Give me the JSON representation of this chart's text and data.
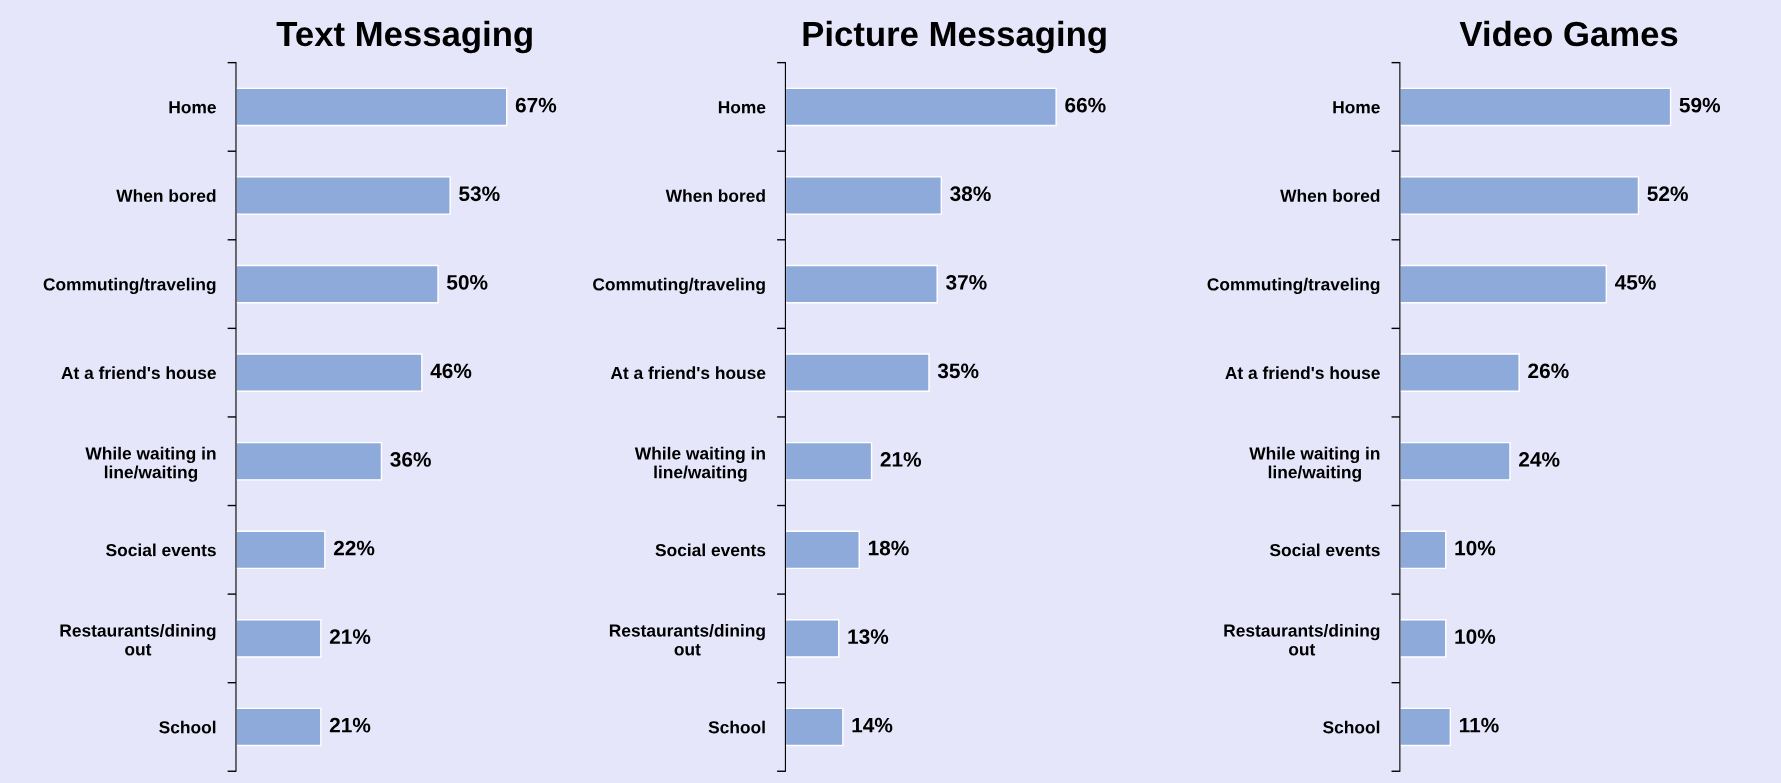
{
  "chart_data": [
    {
      "type": "bar",
      "orientation": "horizontal",
      "title": "Text Messaging",
      "categories": [
        "Home",
        "When bored",
        "Commuting/traveling",
        "At a friend's house",
        "While waiting in\nline/waiting",
        "Social events",
        "Restaurants/dining\nout",
        "School"
      ],
      "values": [
        67,
        53,
        50,
        46,
        36,
        22,
        21,
        21
      ],
      "value_labels": [
        "67%",
        "53%",
        "50%",
        "46%",
        "36%",
        "22%",
        "21%",
        "21%"
      ],
      "color": "#8eaadb",
      "grid": false,
      "legend": false
    },
    {
      "type": "bar",
      "orientation": "horizontal",
      "title": "Picture Messaging",
      "categories": [
        "Home",
        "When bored",
        "Commuting/traveling",
        "At a friend's house",
        "While waiting in\nline/waiting",
        "Social events",
        "Restaurants/dining\nout",
        "School"
      ],
      "values": [
        66,
        38,
        37,
        35,
        21,
        18,
        13,
        14
      ],
      "value_labels": [
        "66%",
        "38%",
        "37%",
        "35%",
        "21%",
        "18%",
        "13%",
        "14%"
      ],
      "color": "#8eaadb",
      "grid": false,
      "legend": false
    },
    {
      "type": "bar",
      "orientation": "horizontal",
      "title": "Video Games",
      "categories": [
        "Home",
        "When bored",
        "Commuting/traveling",
        "At a friend's house",
        "While waiting in\nline/waiting",
        "Social events",
        "Restaurants/dining\nout",
        "School"
      ],
      "values": [
        59,
        52,
        45,
        26,
        24,
        10,
        10,
        11
      ],
      "value_labels": [
        "59%",
        "52%",
        "45%",
        "26%",
        "24%",
        "10%",
        "10%",
        "11%"
      ],
      "color": "#8eaadb",
      "grid": false,
      "legend": false
    }
  ]
}
